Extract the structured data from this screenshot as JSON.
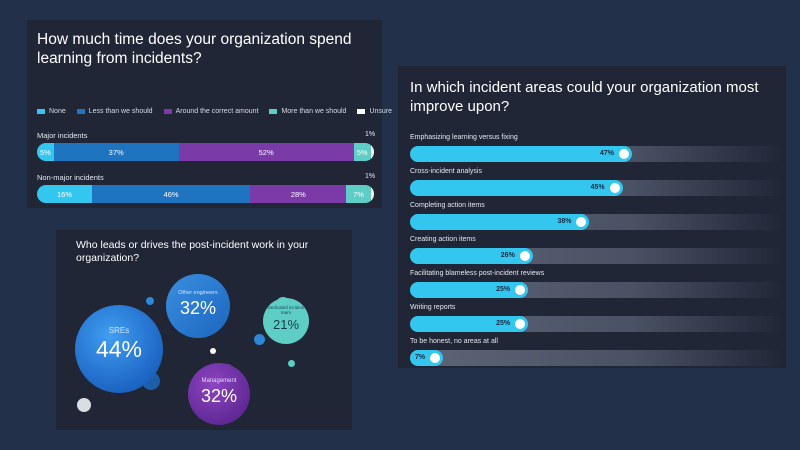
{
  "panel1": {
    "title": "How much time does your organization spend learning from incidents?",
    "legend": [
      {
        "label": "None",
        "color": "#33c6ef"
      },
      {
        "label": "Less than we should",
        "color": "#1f74c0"
      },
      {
        "label": "Around the correct amount",
        "color": "#7a3aa8"
      },
      {
        "label": "More than we should",
        "color": "#5ecdc5"
      },
      {
        "label": "Unsure",
        "color": "#ffffff"
      }
    ]
  },
  "panel2": {
    "title": "In which incident areas could your organization most improve upon?"
  },
  "panel3": {
    "title": "Who leads or drives the post-incident work in your organization?",
    "bubbles": {
      "sres": {
        "label": "SREs",
        "value": "44%"
      },
      "other": {
        "label": "Other engineers",
        "value": "32%"
      },
      "dedicated": {
        "label": "Dedicated incident team",
        "value": "21%"
      },
      "management": {
        "label": "Management",
        "value": "32%"
      }
    }
  },
  "chart_data": [
    {
      "type": "bar",
      "orientation": "horizontal-stacked",
      "title": "How much time does your organization spend learning from incidents?",
      "categories": [
        "Major incidents",
        "Non-major incidents"
      ],
      "series": [
        {
          "name": "None",
          "values": [
            5,
            16
          ],
          "labels": [
            "5%",
            "16%"
          ]
        },
        {
          "name": "Less than we should",
          "values": [
            37,
            46
          ],
          "labels": [
            "37%",
            "46%"
          ]
        },
        {
          "name": "Around the correct amount",
          "values": [
            52,
            28
          ],
          "labels": [
            "52%",
            "28%"
          ]
        },
        {
          "name": "More than we should",
          "values": [
            5,
            7
          ],
          "labels": [
            "5%",
            "7%"
          ]
        },
        {
          "name": "Unsure",
          "values": [
            1,
            1
          ],
          "labels": [
            "1%",
            "1%"
          ]
        }
      ],
      "legend": "top"
    },
    {
      "type": "bar",
      "orientation": "horizontal",
      "title": "In which incident areas could your organization most improve upon?",
      "categories": [
        "Emphasizing learning versus fixing",
        "Cross-incident analysis",
        "Completing action items",
        "Creating action items",
        "Facilitating blameless post-incident reviews",
        "Writing reports",
        "To be honest, no areas at all"
      ],
      "values": [
        47,
        45,
        38,
        26,
        25,
        25,
        7
      ],
      "labels": [
        "47%",
        "45%",
        "38%",
        "26%",
        "25%",
        "25%",
        "7%"
      ],
      "xlim": [
        0,
        100
      ]
    },
    {
      "type": "bubble",
      "title": "Who leads or drives the post-incident work in your organization?",
      "categories": [
        "SREs",
        "Other engineers",
        "Dedicated incident team",
        "Management"
      ],
      "values": [
        44,
        32,
        21,
        32
      ]
    }
  ]
}
